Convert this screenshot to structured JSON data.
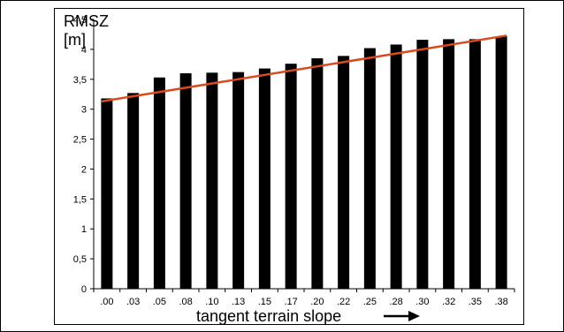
{
  "chart_data": {
    "type": "bar",
    "ylabel_line1": "RMSZ",
    "ylabel_line2": "[m]",
    "xlabel": "tangent terrain slope",
    "categories": [
      ".00",
      ".03",
      ".05",
      ".08",
      ".10",
      ".13",
      ".15",
      ".17",
      ".20",
      ".22",
      ".25",
      ".28",
      ".30",
      ".32",
      ".35",
      ".38"
    ],
    "values": [
      3.18,
      3.27,
      3.53,
      3.6,
      3.61,
      3.62,
      3.68,
      3.76,
      3.85,
      3.89,
      4.02,
      4.08,
      4.16,
      4.17,
      4.17,
      4.22
    ],
    "trendline": {
      "start": 3.13,
      "end": 4.23,
      "color": "#d94a1e"
    },
    "ylim": [
      0,
      4.5
    ],
    "yticks": [
      "0",
      "0,5",
      "1",
      "1,5",
      "2",
      "2,5",
      "3",
      "3,5",
      "4",
      "4,5"
    ],
    "bar_color": "#000000",
    "grid": false,
    "legend": "none"
  }
}
